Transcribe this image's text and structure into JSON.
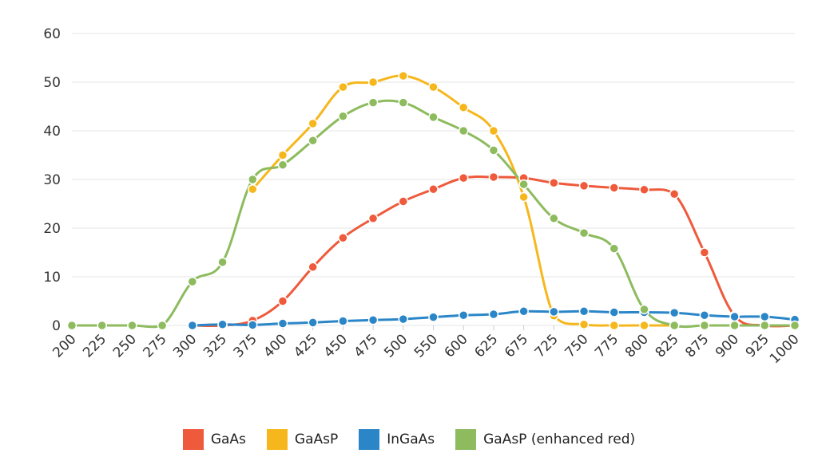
{
  "chart_data": {
    "type": "line",
    "title": "",
    "xlabel": "",
    "ylabel": "",
    "ylim": [
      0,
      60
    ],
    "yticks": [
      0,
      10,
      20,
      30,
      40,
      50,
      60
    ],
    "grid": true,
    "legend_position": "bottom-center",
    "categories": [
      "200",
      "225",
      "250",
      "275",
      "300",
      "325",
      "375",
      "400",
      "425",
      "450",
      "475",
      "500",
      "550",
      "600",
      "625",
      "675",
      "725",
      "750",
      "775",
      "800",
      "825",
      "875",
      "900",
      "925",
      "1000"
    ],
    "series": [
      {
        "name": "GaAs",
        "color": "#ee5a3b",
        "values": [
          null,
          null,
          null,
          null,
          0,
          0,
          1,
          5,
          12,
          18,
          22,
          25.5,
          28,
          30.3,
          30.5,
          30.3,
          29.3,
          28.7,
          28.3,
          27.9,
          27,
          15,
          2,
          0,
          0
        ]
      },
      {
        "name": "GaAsP",
        "color": "#f6b71c",
        "values": [
          null,
          null,
          null,
          null,
          null,
          null,
          28,
          35,
          41.5,
          49,
          50,
          51.3,
          49,
          44.8,
          40,
          26.4,
          2,
          0.2,
          0,
          0,
          0,
          null,
          null,
          null,
          null
        ]
      },
      {
        "name": "InGaAs",
        "color": "#2b86c8",
        "values": [
          null,
          null,
          null,
          null,
          0,
          0.2,
          0.1,
          0.4,
          0.6,
          0.9,
          1.1,
          1.3,
          1.7,
          2.1,
          2.3,
          2.9,
          2.8,
          2.9,
          2.7,
          2.7,
          2.6,
          2.1,
          1.8,
          1.8,
          1.2
        ]
      },
      {
        "name": "GaAsP (enhanced red)",
        "color": "#8dbb5e",
        "values": [
          0,
          0,
          0,
          0,
          9,
          13,
          30,
          33,
          38,
          43,
          45.8,
          45.8,
          42.8,
          40,
          36,
          29,
          22,
          19,
          15.8,
          3.3,
          0,
          0,
          0,
          0,
          0
        ]
      }
    ]
  }
}
